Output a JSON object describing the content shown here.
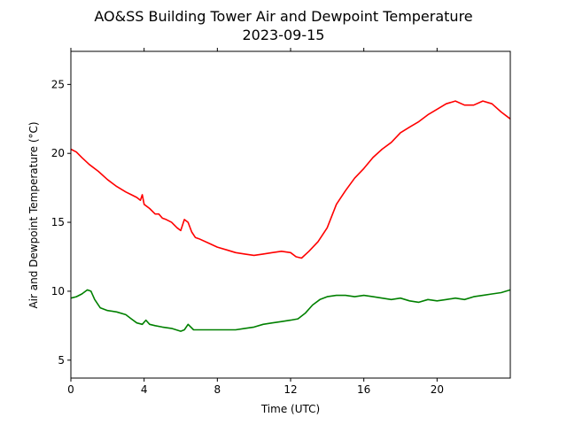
{
  "chart_data": {
    "type": "line",
    "title": "AO&SS Building Tower Air and Dewpoint Temperature",
    "subtitle": "2023-09-15",
    "xlabel": "Time (UTC)",
    "ylabel": "Air and Dewpoint Temperature (°C)",
    "xlim": [
      0,
      24
    ],
    "ylim": [
      3.7,
      27.4
    ],
    "xticks": [
      0,
      4,
      8,
      12,
      16,
      20
    ],
    "yticks": [
      5,
      10,
      15,
      20,
      25
    ],
    "grid": false,
    "legend": "none",
    "series": [
      {
        "color": "#ff0000",
        "x": [
          0,
          0.3,
          0.6,
          1.0,
          1.5,
          2.0,
          2.5,
          3.0,
          3.3,
          3.6,
          3.8,
          3.9,
          4.0,
          4.3,
          4.6,
          4.8,
          5.0,
          5.2,
          5.5,
          5.8,
          6.0,
          6.2,
          6.4,
          6.6,
          6.8,
          7.0,
          7.5,
          8.0,
          8.5,
          9.0,
          9.5,
          10.0,
          10.5,
          11.0,
          11.5,
          12.0,
          12.3,
          12.6,
          13.0,
          13.5,
          14.0,
          14.5,
          15.0,
          15.5,
          16.0,
          16.5,
          17.0,
          17.5,
          18.0,
          18.5,
          19.0,
          19.5,
          20.0,
          20.5,
          21.0,
          21.5,
          22.0,
          22.5,
          23.0,
          23.5,
          24.0
        ],
        "y": [
          20.3,
          20.1,
          19.7,
          19.2,
          18.7,
          18.1,
          17.6,
          17.2,
          17.0,
          16.8,
          16.6,
          17.0,
          16.3,
          16.0,
          15.6,
          15.6,
          15.3,
          15.2,
          15.0,
          14.6,
          14.4,
          15.2,
          15.0,
          14.3,
          13.9,
          13.8,
          13.5,
          13.2,
          13.0,
          12.8,
          12.7,
          12.6,
          12.7,
          12.8,
          12.9,
          12.8,
          12.5,
          12.4,
          12.9,
          13.6,
          14.6,
          16.3,
          17.3,
          18.2,
          18.9,
          19.7,
          20.3,
          20.8,
          21.5,
          21.9,
          22.3,
          22.8,
          23.2,
          23.6,
          23.8,
          23.5,
          23.5,
          23.8,
          23.6,
          23.0,
          22.5
        ]
      },
      {
        "color": "#008000",
        "x": [
          0,
          0.3,
          0.6,
          0.9,
          1.1,
          1.3,
          1.6,
          2.0,
          2.5,
          3.0,
          3.3,
          3.6,
          3.9,
          4.1,
          4.3,
          4.6,
          5.0,
          5.5,
          6.0,
          6.2,
          6.4,
          6.7,
          7.0,
          7.5,
          8.0,
          8.5,
          9.0,
          9.5,
          10.0,
          10.5,
          11.0,
          11.5,
          12.0,
          12.4,
          12.8,
          13.2,
          13.6,
          14.0,
          14.5,
          15.0,
          15.5,
          16.0,
          16.5,
          17.0,
          17.5,
          18.0,
          18.5,
          19.0,
          19.5,
          20.0,
          20.5,
          21.0,
          21.5,
          22.0,
          22.5,
          23.0,
          23.5,
          24.0
        ],
        "y": [
          9.5,
          9.6,
          9.8,
          10.1,
          10.0,
          9.4,
          8.8,
          8.6,
          8.5,
          8.3,
          8.0,
          7.7,
          7.6,
          7.9,
          7.6,
          7.5,
          7.4,
          7.3,
          7.1,
          7.2,
          7.6,
          7.2,
          7.2,
          7.2,
          7.2,
          7.2,
          7.2,
          7.3,
          7.4,
          7.6,
          7.7,
          7.8,
          7.9,
          8.0,
          8.4,
          9.0,
          9.4,
          9.6,
          9.7,
          9.7,
          9.6,
          9.7,
          9.6,
          9.5,
          9.4,
          9.5,
          9.3,
          9.2,
          9.4,
          9.3,
          9.4,
          9.5,
          9.4,
          9.6,
          9.7,
          9.8,
          9.9,
          10.1
        ]
      }
    ]
  }
}
